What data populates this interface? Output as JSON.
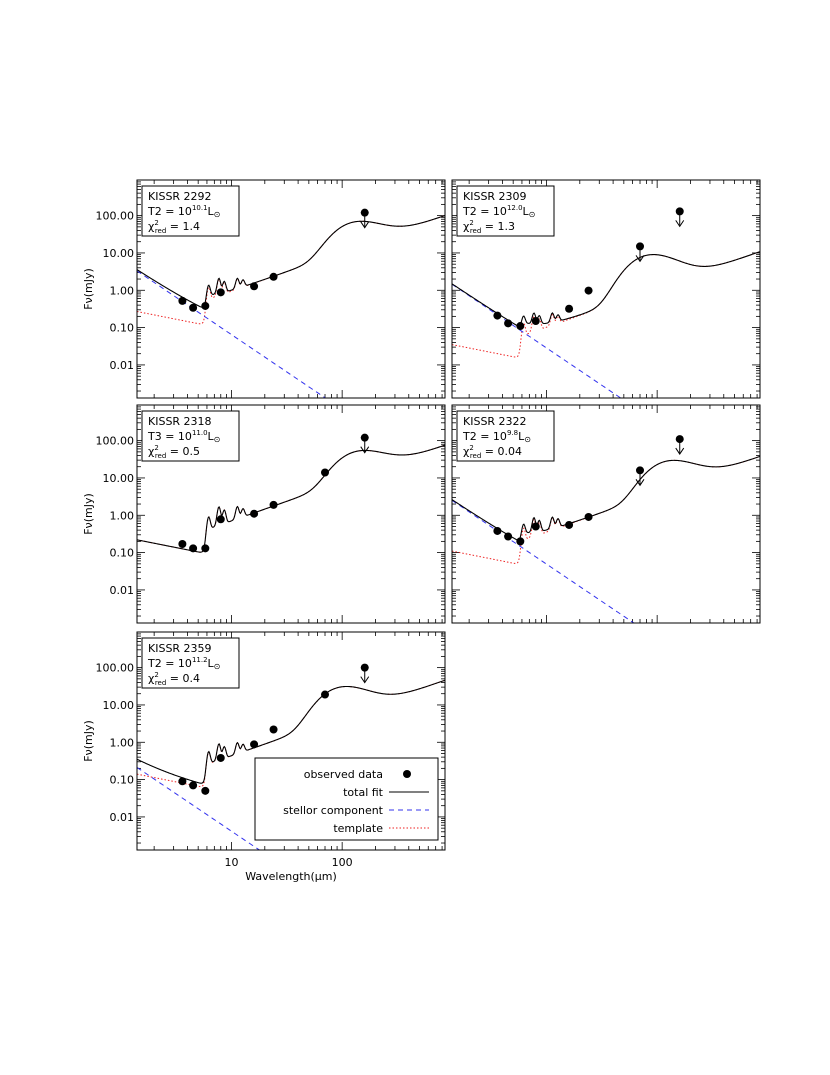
{
  "figure": {
    "y_axis_label": "Fν(mJy)",
    "x_axis_label": "Wavelength(μm)",
    "sun_symbol": "⊙",
    "colors": {
      "stellar": "#3333ee",
      "template": "#ee2222",
      "total": "#000000",
      "data": "#000000"
    }
  },
  "legend": {
    "entries": [
      {
        "label": "observed data",
        "style": "marker"
      },
      {
        "label": "total fit",
        "style": "solid"
      },
      {
        "label": "stellor component",
        "style": "dashed"
      },
      {
        "label": "template",
        "style": "dotted"
      }
    ]
  },
  "chart_data": [
    {
      "type": "line",
      "name": "KISSR 2292",
      "title": "KISSR 2292",
      "template_type": "T2",
      "luminosity_exp": "10.1",
      "chi2": "1.4",
      "xscale": "log",
      "yscale": "log",
      "xlim": [
        1.4,
        850
      ],
      "ylim": [
        0.0013,
        900
      ],
      "yticks": [
        "0.01",
        "0.10",
        "1.00",
        "10.00",
        "100.00"
      ],
      "xticks": [
        "10",
        "100"
      ],
      "show_xticklabels": false,
      "peak": {
        "wavelength": 140,
        "flux": 55
      },
      "stellar": {
        "f3": 0.5,
        "slope": -2
      },
      "template_start": 0.27,
      "pah": [
        [
          6.2,
          1.2
        ],
        [
          7.7,
          2.1
        ],
        [
          8.6,
          1.4
        ],
        [
          11.3,
          1.6
        ],
        [
          12.7,
          1.1
        ]
      ],
      "observed": {
        "wavelength": [
          3.6,
          4.5,
          5.8,
          8.0,
          16,
          24,
          160
        ],
        "flux": [
          0.52,
          0.34,
          0.38,
          0.88,
          1.28,
          2.3,
          120
        ],
        "upper_limit": [
          false,
          false,
          false,
          false,
          false,
          false,
          true
        ]
      }
    },
    {
      "type": "line",
      "name": "KISSR 2309",
      "title": "KISSR 2309",
      "template_type": "T2",
      "luminosity_exp": "12.0",
      "chi2": "1.3",
      "xscale": "log",
      "yscale": "log",
      "xlim": [
        1.4,
        850
      ],
      "ylim": [
        0.0013,
        900
      ],
      "yticks": [
        "0.01",
        "0.10",
        "1.00",
        "10.00",
        "100.00"
      ],
      "xticks": [
        "10",
        "100"
      ],
      "show_xticklabels": false,
      "peak": {
        "wavelength": 90,
        "flux": 8
      },
      "stellar": {
        "f3": 0.22,
        "slope": -2
      },
      "template_start": 0.035,
      "pah": [
        [
          6.2,
          0.13
        ],
        [
          7.7,
          0.2
        ],
        [
          8.6,
          0.14
        ],
        [
          11.3,
          0.18
        ],
        [
          12.7,
          0.12
        ]
      ],
      "observed": {
        "wavelength": [
          3.6,
          4.5,
          5.8,
          8.0,
          16,
          24,
          70,
          160
        ],
        "flux": [
          0.21,
          0.13,
          0.11,
          0.15,
          0.32,
          0.98,
          15,
          130
        ],
        "upper_limit": [
          false,
          false,
          false,
          false,
          false,
          false,
          true,
          true
        ]
      }
    },
    {
      "type": "line",
      "name": "KISSR 2318",
      "title": "KISSR 2318",
      "template_type": "T3",
      "luminosity_exp": "11.0",
      "chi2": "0.5",
      "xscale": "log",
      "yscale": "log",
      "xlim": [
        1.4,
        850
      ],
      "ylim": [
        0.0013,
        900
      ],
      "yticks": [
        "0.01",
        "0.10",
        "1.00",
        "10.00",
        "100.00"
      ],
      "xticks": [
        "10",
        "100"
      ],
      "show_xticklabels": false,
      "peak": {
        "wavelength": 150,
        "flux": 42
      },
      "stellar": null,
      "template_start": 0.22,
      "pah": [
        [
          6.2,
          0.9
        ],
        [
          7.7,
          1.9
        ],
        [
          8.6,
          1.3
        ],
        [
          11.3,
          1.5
        ],
        [
          12.7,
          1.0
        ]
      ],
      "observed": {
        "wavelength": [
          3.6,
          4.5,
          5.8,
          8.0,
          16,
          24,
          70,
          160
        ],
        "flux": [
          0.17,
          0.13,
          0.13,
          0.78,
          1.1,
          1.9,
          14,
          120
        ],
        "upper_limit": [
          false,
          false,
          false,
          false,
          false,
          false,
          false,
          true
        ]
      }
    },
    {
      "type": "line",
      "name": "KISSR 2322",
      "title": "KISSR 2322",
      "template_type": "T2",
      "luminosity_exp": "9.8",
      "chi2": "0.04",
      "xscale": "log",
      "yscale": "log",
      "xlim": [
        1.4,
        850
      ],
      "ylim": [
        0.0013,
        900
      ],
      "yticks": [
        "0.01",
        "0.10",
        "1.00",
        "10.00",
        "100.00"
      ],
      "xticks": [
        "10",
        "100"
      ],
      "show_xticklabels": false,
      "peak": {
        "wavelength": 135,
        "flux": 24
      },
      "stellar": {
        "f3": 0.38,
        "slope": -2
      },
      "template_start": 0.11,
      "pah": [
        [
          6.2,
          0.45
        ],
        [
          7.7,
          0.85
        ],
        [
          8.6,
          0.6
        ],
        [
          11.3,
          0.75
        ],
        [
          12.7,
          0.55
        ]
      ],
      "observed": {
        "wavelength": [
          3.6,
          4.5,
          5.8,
          8.0,
          16,
          24,
          70,
          160
        ],
        "flux": [
          0.38,
          0.27,
          0.2,
          0.5,
          0.55,
          0.9,
          16,
          110
        ],
        "upper_limit": [
          false,
          false,
          false,
          false,
          false,
          false,
          true,
          true
        ]
      }
    },
    {
      "type": "line",
      "name": "KISSR 2359",
      "title": "KISSR 2359",
      "template_type": "T2",
      "luminosity_exp": "11.2",
      "chi2": "0.4",
      "xscale": "log",
      "yscale": "log",
      "xlim": [
        1.4,
        850
      ],
      "ylim": [
        0.0013,
        900
      ],
      "yticks": [
        "0.01",
        "0.10",
        "1.00",
        "10.00",
        "100.00"
      ],
      "xticks": [
        "10",
        "100"
      ],
      "show_xticklabels": true,
      "peak": {
        "wavelength": 105,
        "flux": 26
      },
      "stellar": {
        "f3": 0.032,
        "slope": -2
      },
      "template_start": 0.14,
      "pah": [
        [
          6.2,
          0.55
        ],
        [
          7.7,
          0.95
        ],
        [
          8.6,
          0.65
        ],
        [
          11.3,
          0.8
        ],
        [
          12.7,
          0.55
        ]
      ],
      "observed": {
        "wavelength": [
          3.6,
          4.5,
          5.8,
          8.0,
          16,
          24,
          70,
          160
        ],
        "flux": [
          0.09,
          0.07,
          0.05,
          0.38,
          0.88,
          2.2,
          19,
          100
        ],
        "upper_limit": [
          false,
          false,
          false,
          false,
          false,
          false,
          false,
          true
        ]
      }
    }
  ]
}
